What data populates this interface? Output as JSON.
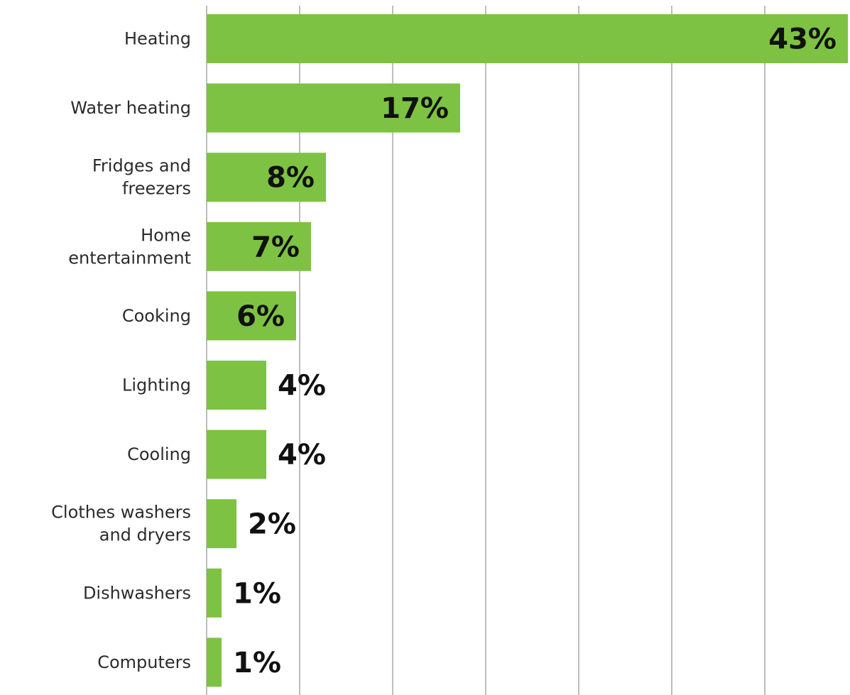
{
  "chart_data": {
    "type": "bar",
    "orientation": "horizontal",
    "categories": [
      [
        "Heating"
      ],
      [
        "Water heating"
      ],
      [
        "Fridges and",
        "freezers"
      ],
      [
        "Home",
        "entertainment"
      ],
      [
        "Cooking"
      ],
      [
        "Lighting"
      ],
      [
        "Cooling"
      ],
      [
        "Clothes washers",
        "and dryers"
      ],
      [
        "Dishwashers"
      ],
      [
        "Computers"
      ]
    ],
    "values": [
      43,
      17,
      8,
      7,
      6,
      4,
      4,
      2,
      1,
      1
    ],
    "value_labels": [
      "43%",
      "17%",
      "8%",
      "7%",
      "6%",
      "4%",
      "4%",
      "2%",
      "1%",
      "1%"
    ],
    "title": "",
    "xlabel": "",
    "ylabel": "",
    "grid": true,
    "legend": "none",
    "bar_color": "#7dc242"
  }
}
